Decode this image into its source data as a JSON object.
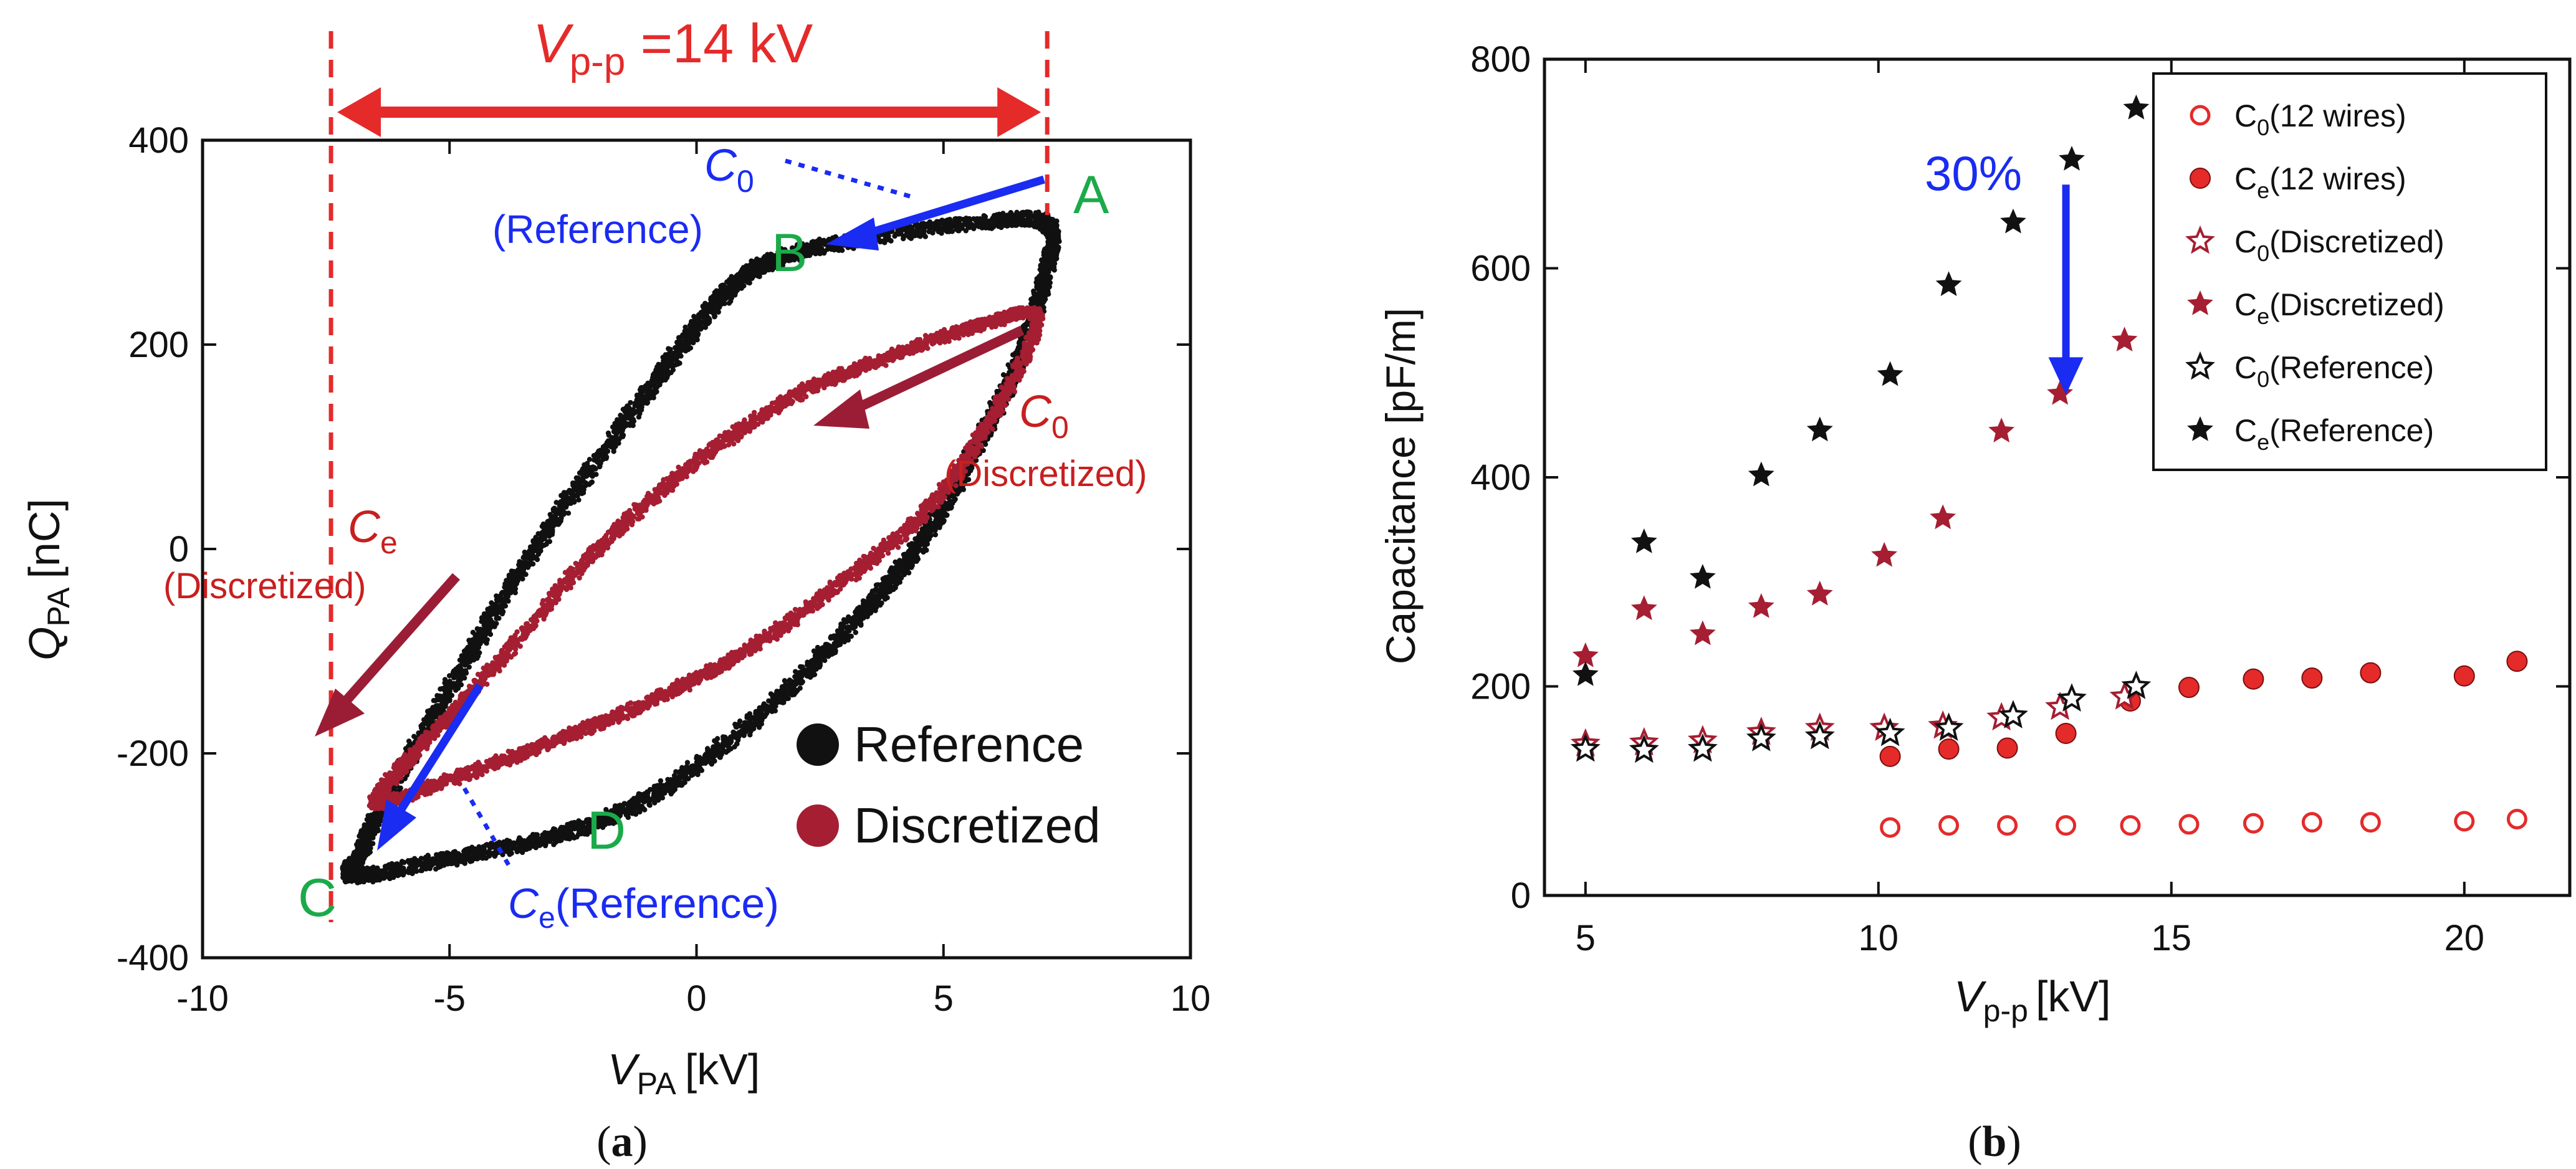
{
  "chart_data": [
    {
      "type": "scatter",
      "panel_label": "(a)",
      "x_axis": {
        "symbol": "V",
        "subscript": "PA",
        "unit": "[kV]",
        "range": [
          -10,
          10
        ],
        "ticks": [
          -10,
          -5,
          0,
          5,
          10
        ]
      },
      "y_axis": {
        "symbol": "Q",
        "subscript": "PA",
        "unit": "[nC]",
        "range": [
          -400,
          400
        ],
        "ticks": [
          -400,
          -200,
          0,
          200,
          400
        ]
      },
      "vpp_annotation": {
        "symbol": "V",
        "subscript": "p-p",
        "text": " =14 kV",
        "v_left": -7.4,
        "v_right": 7.1
      },
      "series": [
        {
          "name": "Reference",
          "color": "#111111",
          "loop": [
            [
              -6.9,
              -320
            ],
            [
              -5.0,
              -303
            ],
            [
              -3.0,
              -283
            ],
            [
              -1.2,
              -250
            ],
            [
              0.6,
              -190
            ],
            [
              2.2,
              -120
            ],
            [
              3.5,
              -55
            ],
            [
              4.6,
              10
            ],
            [
              5.5,
              85
            ],
            [
              6.4,
              170
            ],
            [
              7.0,
              255
            ],
            [
              7.1,
              318
            ],
            [
              5.5,
              318
            ],
            [
              3.0,
              300
            ],
            [
              1.7,
              285
            ],
            [
              0.8,
              260
            ],
            [
              -0.2,
              205
            ],
            [
              -1.5,
              120
            ],
            [
              -3.0,
              20
            ],
            [
              -4.3,
              -80
            ],
            [
              -5.4,
              -170
            ],
            [
              -6.3,
              -245
            ],
            [
              -6.8,
              -298
            ],
            [
              -6.9,
              -320
            ]
          ],
          "points": {
            "A": [
              7.1,
              318
            ],
            "B": [
              2.4,
              300
            ],
            "C": [
              -6.9,
              -320
            ],
            "D": [
              -2.6,
              -280
            ]
          }
        },
        {
          "name": "Discretized",
          "color": "#A51E32",
          "loop": [
            [
              -6.5,
              -248
            ],
            [
              -5.0,
              -226
            ],
            [
              -3.0,
              -190
            ],
            [
              -1.0,
              -150
            ],
            [
              1.0,
              -100
            ],
            [
              3.0,
              -30
            ],
            [
              4.7,
              40
            ],
            [
              6.0,
              130
            ],
            [
              6.9,
              225
            ],
            [
              5.8,
              220
            ],
            [
              4.0,
              190
            ],
            [
              2.0,
              150
            ],
            [
              0.0,
              85
            ],
            [
              -2.0,
              0
            ],
            [
              -4.0,
              -110
            ],
            [
              -5.6,
              -195
            ],
            [
              -6.5,
              -248
            ]
          ]
        }
      ],
      "points_labels": {
        "A": "A",
        "B": "B",
        "C": "C",
        "D": "D"
      },
      "annotations": {
        "c0_ref": {
          "symbol": "C",
          "subscript": "0",
          "text": "(Reference)"
        },
        "c0_disc": {
          "symbol": "C",
          "subscript": "0",
          "text": "(Discretized)"
        },
        "ce_disc": {
          "symbol": "C",
          "subscript": "e",
          "text": "(Discretized)"
        },
        "ce_ref": {
          "symbol": "C",
          "subscript": "e",
          "text": "(Reference)"
        }
      },
      "legend": {
        "position": "bottom-right",
        "items": [
          {
            "label": "Reference",
            "color": "#111111"
          },
          {
            "label": "Discretized",
            "color": "#A51E32"
          }
        ]
      }
    },
    {
      "type": "scatter",
      "panel_label": "(b)",
      "x_axis": {
        "symbol": "V",
        "subscript": "p-p",
        "unit": "[kV]",
        "range": [
          4.3,
          21.8
        ],
        "ticks": [
          5,
          10,
          15,
          20
        ]
      },
      "y_axis": {
        "label": "Capacitance [pF/m]",
        "range": [
          0,
          800
        ],
        "ticks": [
          0,
          200,
          400,
          600,
          800
        ]
      },
      "series": [
        {
          "name": "C0(12 wires)",
          "symbol": "C",
          "subscript": "0",
          "suffix": "(12 wires)",
          "marker": "circle-open",
          "color": "#E52A2A",
          "x": [
            10.2,
            11.2,
            12.2,
            13.2,
            14.3,
            15.3,
            16.4,
            17.4,
            18.4,
            20.0,
            20.9
          ],
          "y": [
            65,
            67,
            67,
            67,
            67,
            68,
            69,
            70,
            70,
            71,
            73
          ]
        },
        {
          "name": "Ce(12 wires)",
          "symbol": "C",
          "subscript": "e",
          "suffix": "(12 wires)",
          "marker": "circle-filled",
          "color": "#E52A2A",
          "x": [
            10.2,
            11.2,
            12.2,
            13.2,
            14.3,
            15.3,
            16.4,
            17.4,
            18.4,
            20.0,
            20.9
          ],
          "y": [
            133,
            140,
            141,
            155,
            186,
            199,
            207,
            208,
            213,
            210,
            224
          ]
        },
        {
          "name": "C0(Discretized)",
          "symbol": "C",
          "subscript": "0",
          "suffix": "(Discretized)",
          "marker": "star-open",
          "color": "#A51E32",
          "x": [
            5.0,
            6.0,
            7.0,
            8.0,
            9.0,
            10.1,
            11.1,
            12.1,
            13.1,
            14.2
          ],
          "y": [
            145,
            146,
            148,
            156,
            160,
            160,
            162,
            170,
            180,
            190
          ]
        },
        {
          "name": "Ce(Discretized)",
          "symbol": "C",
          "subscript": "e",
          "suffix": "(Discretized)",
          "marker": "star-filled",
          "color": "#A51E32",
          "x": [
            5.0,
            6.0,
            7.0,
            8.0,
            9.0,
            10.1,
            11.1,
            12.1,
            13.1,
            14.2
          ],
          "y": [
            229,
            274,
            250,
            276,
            288,
            325,
            361,
            444,
            480,
            531
          ]
        },
        {
          "name": "C0(Reference)",
          "symbol": "C",
          "subscript": "0",
          "suffix": "(Reference)",
          "marker": "star-open",
          "color": "#111111",
          "x": [
            5.0,
            6.0,
            7.0,
            8.0,
            9.0,
            10.2,
            11.2,
            12.3,
            13.3,
            14.4
          ],
          "y": [
            140,
            139,
            140,
            150,
            152,
            155,
            160,
            172,
            188,
            200
          ]
        },
        {
          "name": "Ce(Reference)",
          "symbol": "C",
          "subscript": "e",
          "suffix": "(Reference)",
          "marker": "star-filled",
          "color": "#111111",
          "x": [
            5.0,
            6.0,
            7.0,
            8.0,
            9.0,
            10.2,
            11.2,
            12.3,
            13.3,
            14.4
          ],
          "y": [
            211,
            338,
            304,
            402,
            445,
            498,
            584,
            644,
            704,
            753
          ]
        }
      ],
      "annotation": {
        "text": "30%",
        "x": 13.2,
        "y_from": 680,
        "y_to": 488
      },
      "legend": {
        "position": "top-right"
      }
    }
  ]
}
